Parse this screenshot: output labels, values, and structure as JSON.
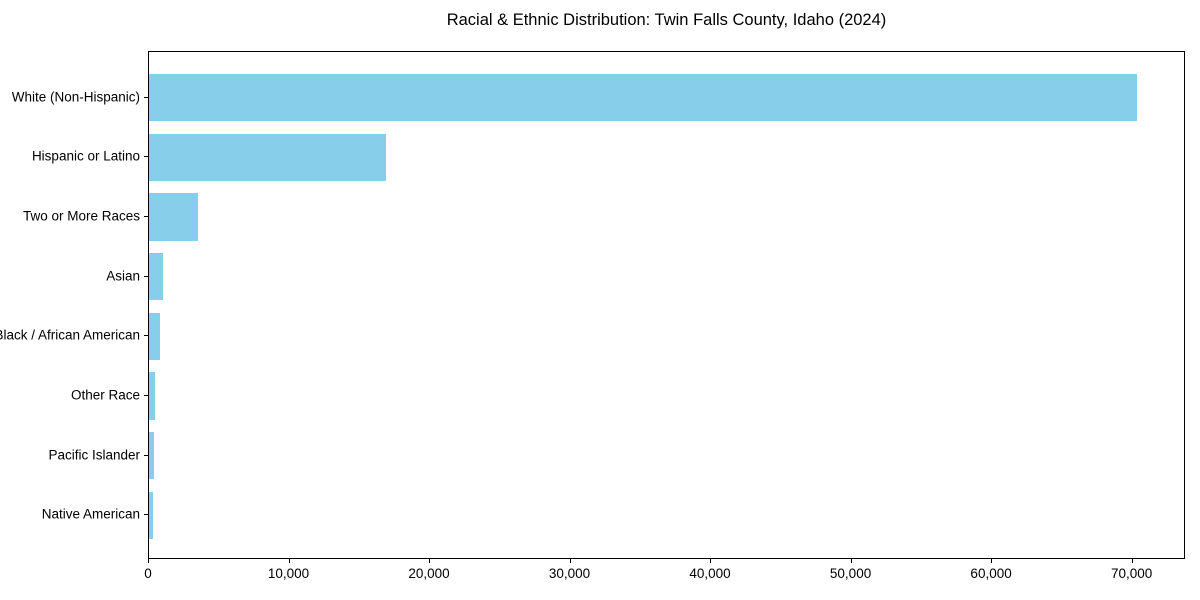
{
  "title": "Racial & Ethnic Distribution: Twin Falls County, Idaho (2024)",
  "chart_data": {
    "type": "bar",
    "orientation": "horizontal",
    "title": "Racial & Ethnic Distribution: Twin Falls County, Idaho (2024)",
    "xlabel": "",
    "ylabel": "",
    "categories": [
      "White (Non-Hispanic)",
      "Hispanic or Latino",
      "Two or More Races",
      "Asian",
      "Black / African American",
      "Other Race",
      "Pacific Islander",
      "Native American"
    ],
    "values": [
      70300,
      16900,
      3500,
      1000,
      800,
      430,
      380,
      300
    ],
    "xlim": [
      0,
      73800
    ],
    "xticks": [
      0,
      10000,
      20000,
      30000,
      40000,
      50000,
      60000,
      70000
    ],
    "xtick_labels": [
      "0",
      "10,000",
      "20,000",
      "30,000",
      "40,000",
      "50,000",
      "60,000",
      "70,000"
    ],
    "bar_color": "#87CEEB",
    "text_color": "#000000",
    "spine_color": "#000000",
    "background": "#FFFFFF",
    "grid": false,
    "legend": false
  }
}
